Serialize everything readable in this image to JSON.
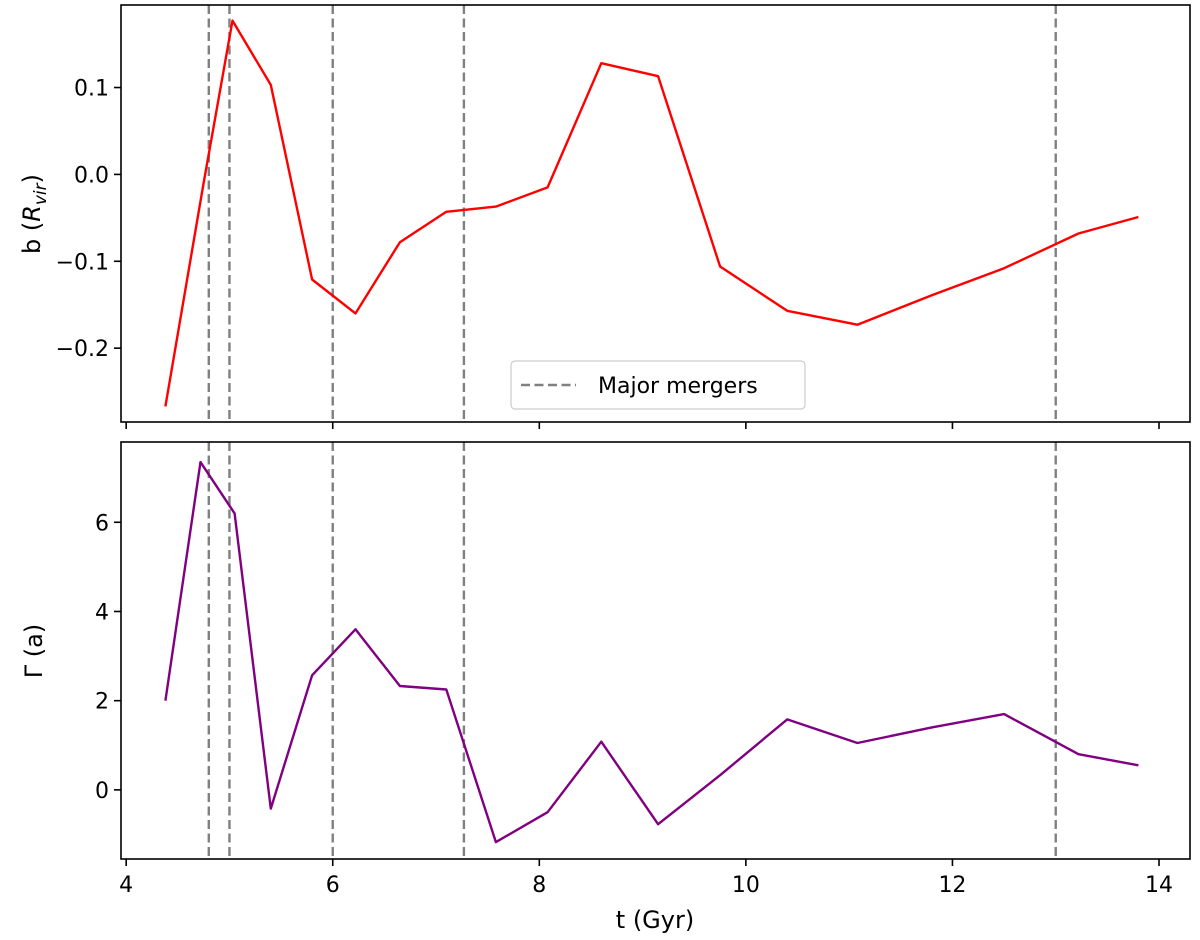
{
  "chart_data": [
    {
      "type": "line",
      "panel": "top",
      "ylabel_main": "b (",
      "ylabel_var": "R",
      "ylabel_sub": "vir",
      "ylabel_close": ")",
      "xlim": [
        3.95,
        14.3
      ],
      "ylim": [
        -0.285,
        0.195
      ],
      "yticks": [
        -0.2,
        -0.1,
        0.0,
        0.1
      ],
      "ytick_labels": [
        "−0.2",
        "−0.1",
        "0.0",
        "0.1"
      ],
      "xticks": [
        4,
        6,
        8,
        10,
        12,
        14
      ],
      "grid": false,
      "series": [
        {
          "color": "#ff0000",
          "x": [
            4.38,
            4.75,
            5.03,
            5.4,
            5.8,
            6.22,
            6.65,
            7.1,
            7.58,
            8.08,
            8.6,
            9.15,
            9.75,
            10.4,
            11.08,
            11.8,
            12.5,
            13.22,
            13.8
          ],
          "y": [
            -0.267,
            -0.01,
            0.177,
            0.103,
            -0.121,
            -0.16,
            -0.078,
            -0.043,
            -0.037,
            -0.015,
            0.128,
            0.113,
            -0.106,
            -0.157,
            -0.173,
            -0.139,
            -0.108,
            -0.068,
            -0.049
          ]
        }
      ],
      "vlines": [
        4.8,
        5.0,
        6.0,
        7.27,
        13.0
      ],
      "vline_color": "#808080",
      "legend": {
        "label": "Major mergers",
        "placement": "lower-center"
      }
    },
    {
      "type": "line",
      "panel": "bottom",
      "ylabel": "Γ (a)",
      "xlabel": "t (Gyr)",
      "xlim": [
        3.95,
        14.3
      ],
      "ylim": [
        -1.55,
        7.8
      ],
      "yticks": [
        0,
        2,
        4,
        6
      ],
      "ytick_labels": [
        "0",
        "2",
        "4",
        "6"
      ],
      "xticks": [
        4,
        6,
        8,
        10,
        12,
        14
      ],
      "xtick_labels": [
        "4",
        "6",
        "8",
        "10",
        "12",
        "14"
      ],
      "grid": false,
      "series": [
        {
          "color": "#800080",
          "x": [
            4.38,
            4.72,
            5.05,
            5.4,
            5.8,
            6.22,
            6.65,
            7.1,
            7.58,
            8.08,
            8.6,
            9.15,
            9.75,
            10.4,
            11.08,
            11.8,
            12.5,
            13.22,
            13.8
          ],
          "y": [
            2.0,
            7.35,
            6.2,
            -0.42,
            2.57,
            3.6,
            2.33,
            2.25,
            -1.17,
            -0.5,
            1.08,
            -0.77,
            0.33,
            1.58,
            1.05,
            1.4,
            1.7,
            0.8,
            0.55
          ]
        }
      ],
      "vlines": [
        4.8,
        5.0,
        6.0,
        7.27,
        13.0
      ],
      "vline_color": "#808080"
    }
  ]
}
